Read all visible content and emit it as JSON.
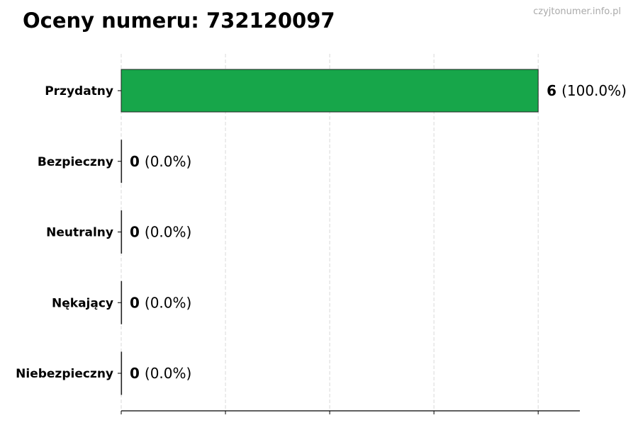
{
  "title": "Oceny numeru: 732120097",
  "watermark": "czyjtonumer.info.pl",
  "colors": {
    "bar": "#17a64a",
    "edge": "#222222",
    "grid": "#d9d9d9"
  },
  "chart_data": {
    "type": "bar",
    "orientation": "horizontal",
    "categories": [
      "Przydatny",
      "Bezpieczny",
      "Neutralny",
      "Nękający",
      "Niebezpieczny"
    ],
    "values": [
      6,
      0,
      0,
      0,
      0
    ],
    "labels": [
      {
        "count": "6",
        "pct": "(100.0%)"
      },
      {
        "count": "0",
        "pct": "(0.0%)"
      },
      {
        "count": "0",
        "pct": "(0.0%)"
      },
      {
        "count": "0",
        "pct": "(0.0%)"
      },
      {
        "count": "0",
        "pct": "(0.0%)"
      }
    ],
    "xlim": [
      0,
      6.6
    ],
    "xticks": [
      0,
      1.5,
      3,
      4.5,
      6
    ],
    "grid": "x-dashed",
    "xlabel": "",
    "ylabel": ""
  }
}
